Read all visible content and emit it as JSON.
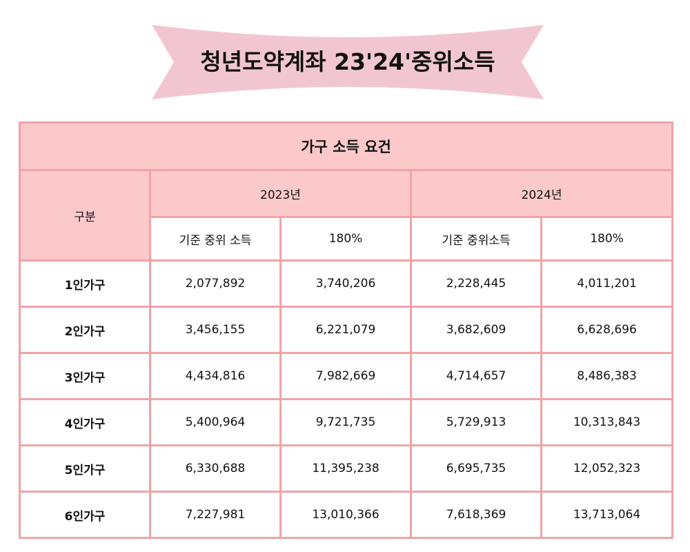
{
  "banner": {
    "title": "청년도약계좌 23'24'중위소득",
    "color": "#f2c6d1"
  },
  "table": {
    "caption": "가구 소득 요건",
    "category_header": "구분",
    "years": [
      "2023년",
      "2024년"
    ],
    "sub_headers": [
      "기준 중위 소득",
      "180%",
      "기준 중위소득",
      "180%"
    ],
    "rows": [
      {
        "label": "1인가구",
        "values": [
          "2,077,892",
          "3,740,206",
          "2,228,445",
          "4,011,201"
        ]
      },
      {
        "label": "2인가구",
        "values": [
          "3,456,155",
          "6,221,079",
          "3,682,609",
          "6,628,696"
        ]
      },
      {
        "label": "3인가구",
        "values": [
          "4,434,816",
          "7,982,669",
          "4,714,657",
          "8,486,383"
        ]
      },
      {
        "label": "4인가구",
        "values": [
          "5,400,964",
          "9,721,735",
          "5,729,913",
          "10,313,843"
        ]
      },
      {
        "label": "5인가구",
        "values": [
          "6,330,688",
          "11,395,238",
          "6,695,735",
          "12,052,323"
        ]
      },
      {
        "label": "6인가구",
        "values": [
          "7,227,981",
          "13,010,366",
          "7,618,369",
          "13,713,064"
        ]
      }
    ],
    "colors": {
      "header_fill": "#fcc9cb",
      "border": "#f0a3a6",
      "body_fill": "#ffffff"
    }
  }
}
